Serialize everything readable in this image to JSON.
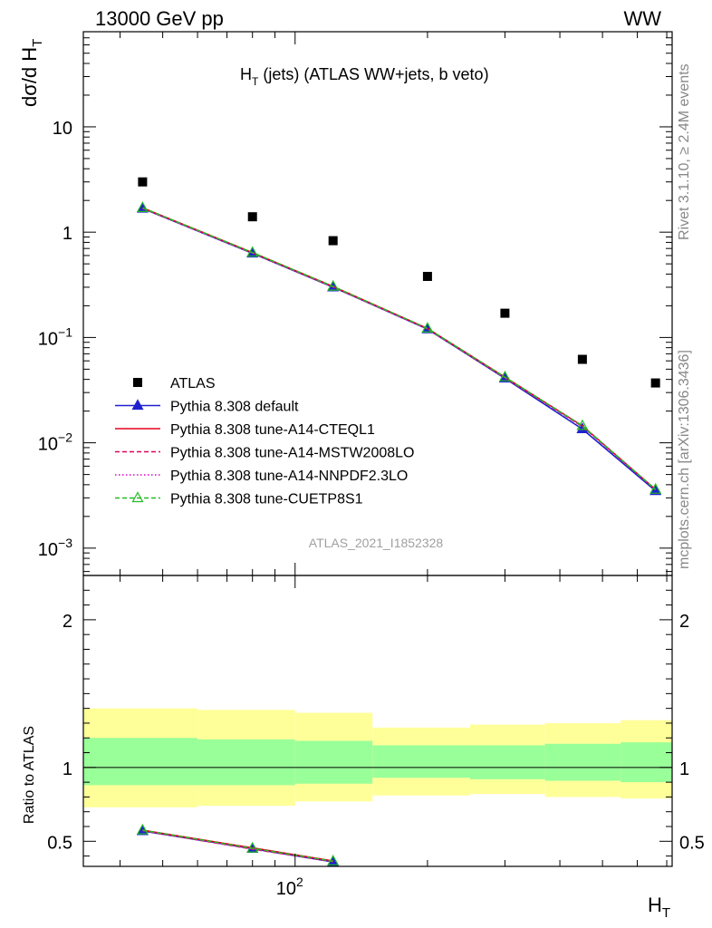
{
  "header": {
    "left": "13000 GeV pp",
    "right": "WW"
  },
  "side_text": {
    "rivet": "Rivet 3.1.10, ≥ 2.4M events",
    "mcplots": "mcplots.cern.ch [arXiv:1306.3436]"
  },
  "chart_data": [
    {
      "type": "line",
      "title": "H_T (jets) (ATLAS WW+jets, b veto)",
      "ylabel": "dσ/d H_T",
      "xlabel": "H_T",
      "xscale": "log",
      "yscale": "log",
      "xlim": [
        33,
        720
      ],
      "ylim": [
        0.00055,
        80
      ],
      "yticks": [
        {
          "value": 0.001,
          "base": "10",
          "exp": "−3"
        },
        {
          "value": 0.01,
          "base": "10",
          "exp": "−2"
        },
        {
          "value": 0.1,
          "base": "10",
          "exp": "−1"
        },
        {
          "value": 1,
          "base": "1",
          "exp": ""
        },
        {
          "value": 10,
          "base": "10",
          "exp": ""
        }
      ],
      "watermark": "ATLAS_2021_I1852328",
      "legend_position": "lower-left",
      "series": [
        {
          "name": "ATLAS",
          "color": "#000000",
          "marker": "square",
          "x": [
            45,
            80,
            122,
            200,
            300,
            450,
            660
          ],
          "y": [
            3.0,
            1.4,
            0.83,
            0.38,
            0.17,
            0.062,
            0.037
          ]
        },
        {
          "name": "Pythia 8.308 default",
          "color": "#2020d0",
          "marker": "triangle-filled",
          "dash": "",
          "x": [
            45,
            80,
            122,
            200,
            300,
            450,
            660
          ],
          "y": [
            1.68,
            0.63,
            0.3,
            0.12,
            0.041,
            0.0135,
            0.0035
          ]
        },
        {
          "name": "Pythia 8.308 tune-A14-CTEQL1",
          "color": "#e8001c",
          "marker": "",
          "dash": "",
          "x": [
            45,
            80,
            122,
            200,
            300,
            450,
            660
          ],
          "y": [
            1.7,
            0.64,
            0.305,
            0.122,
            0.042,
            0.0145,
            0.0036
          ]
        },
        {
          "name": "Pythia 8.308 tune-A14-MSTW2008LO",
          "color": "#e0005a",
          "marker": "",
          "dash": "5,3",
          "x": [
            45,
            80,
            122,
            200,
            300,
            450,
            660
          ],
          "y": [
            1.69,
            0.635,
            0.302,
            0.121,
            0.0415,
            0.0143,
            0.0036
          ]
        },
        {
          "name": "Pythia 8.308 tune-A14-NNPDF2.3LO",
          "color": "#e000c8",
          "marker": "",
          "dash": "1.5,2.5",
          "x": [
            45,
            80,
            122,
            200,
            300,
            450,
            660
          ],
          "y": [
            1.69,
            0.635,
            0.302,
            0.121,
            0.0415,
            0.0143,
            0.0036
          ]
        },
        {
          "name": "Pythia 8.308 tune-CUETP8S1",
          "color": "#22bb22",
          "marker": "triangle-open",
          "dash": "5,3",
          "x": [
            45,
            80,
            122,
            200,
            300,
            450,
            660
          ],
          "y": [
            1.7,
            0.64,
            0.305,
            0.122,
            0.042,
            0.0145,
            0.0036
          ]
        }
      ]
    },
    {
      "type": "area",
      "ylabel": "Ratio to ATLAS",
      "xlabel": "H_T",
      "xscale": "log",
      "xlim": [
        33,
        720
      ],
      "ylim": [
        0.33,
        2.3
      ],
      "yticks": [
        0.5,
        1,
        2
      ],
      "xtick_label": {
        "value": 100,
        "base": "10",
        "exp": "2"
      },
      "bins": [
        {
          "lo": 33,
          "hi": 60,
          "yellow": [
            0.73,
            1.4
          ],
          "green": [
            0.88,
            1.2
          ]
        },
        {
          "lo": 60,
          "hi": 100,
          "yellow": [
            0.74,
            1.39
          ],
          "green": [
            0.88,
            1.19
          ]
        },
        {
          "lo": 100,
          "hi": 150,
          "yellow": [
            0.77,
            1.37
          ],
          "green": [
            0.89,
            1.18
          ]
        },
        {
          "lo": 150,
          "hi": 250,
          "yellow": [
            0.81,
            1.27
          ],
          "green": [
            0.93,
            1.15
          ]
        },
        {
          "lo": 250,
          "hi": 370,
          "yellow": [
            0.82,
            1.29
          ],
          "green": [
            0.92,
            1.15
          ]
        },
        {
          "lo": 370,
          "hi": 550,
          "yellow": [
            0.8,
            1.3
          ],
          "green": [
            0.91,
            1.16
          ]
        },
        {
          "lo": 550,
          "hi": 720,
          "yellow": [
            0.79,
            1.32
          ],
          "green": [
            0.9,
            1.17
          ]
        }
      ],
      "series": [
        {
          "name": "Pythia 8.308 default",
          "color": "#2020d0",
          "marker": "triangle-filled",
          "dash": "",
          "x": [
            45,
            80,
            122
          ],
          "y": [
            0.57,
            0.45,
            0.36
          ]
        },
        {
          "name": "Pythia 8.308 tune-A14-CTEQL1",
          "color": "#e8001c",
          "marker": "",
          "dash": "",
          "x": [
            45,
            80,
            122
          ],
          "y": [
            0.575,
            0.455,
            0.367
          ]
        },
        {
          "name": "Pythia 8.308 tune-A14-MSTW2008LO",
          "color": "#e0005a",
          "marker": "",
          "dash": "5,3",
          "x": [
            45,
            80,
            122
          ],
          "y": [
            0.572,
            0.447,
            0.362
          ]
        },
        {
          "name": "Pythia 8.308 tune-A14-NNPDF2.3LO",
          "color": "#e000c8",
          "marker": "",
          "dash": "1.5,2.5",
          "x": [
            45,
            80,
            122
          ],
          "y": [
            0.572,
            0.447,
            0.362
          ]
        },
        {
          "name": "Pythia 8.308 tune-CUETP8S1",
          "color": "#22bb22",
          "marker": "triangle-open",
          "dash": "5,3",
          "x": [
            45,
            80,
            122
          ],
          "y": [
            0.575,
            0.452,
            0.365
          ]
        }
      ]
    }
  ]
}
